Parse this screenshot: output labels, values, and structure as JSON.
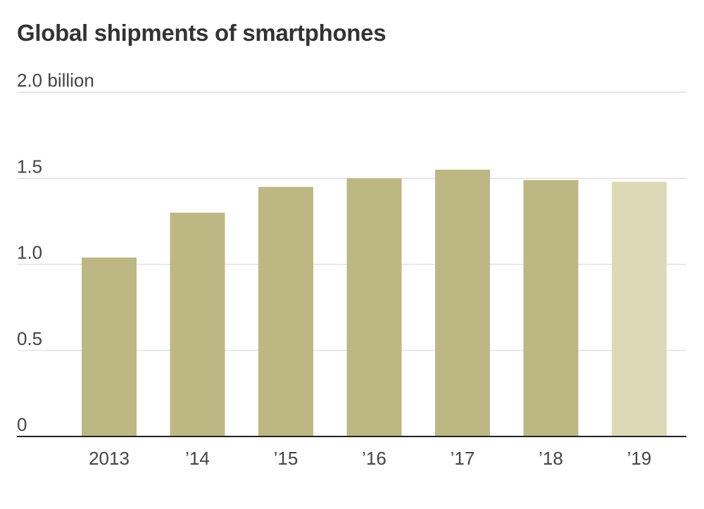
{
  "chart_data": {
    "type": "bar",
    "title": "Global shipments of smartphones",
    "categories": [
      "2013",
      "’14",
      "’15",
      "’16",
      "’17",
      "’18",
      "’19"
    ],
    "values": [
      1.04,
      1.3,
      1.45,
      1.5,
      1.55,
      1.49,
      1.48
    ],
    "y_ticks": [
      {
        "value": 2.0,
        "label": "2.0 billion"
      },
      {
        "value": 1.5,
        "label": "1.5"
      },
      {
        "value": 1.0,
        "label": "1.0"
      },
      {
        "value": 0.5,
        "label": "0.5"
      },
      {
        "value": 0,
        "label": "0"
      }
    ],
    "ylim": [
      0,
      2.0
    ],
    "grid": true,
    "colors": {
      "bar": "#bdb883",
      "bar_highlight": "#ddd9b7",
      "grid": "#e3e3e3",
      "axis": "#222222"
    },
    "highlight_index": 6
  }
}
